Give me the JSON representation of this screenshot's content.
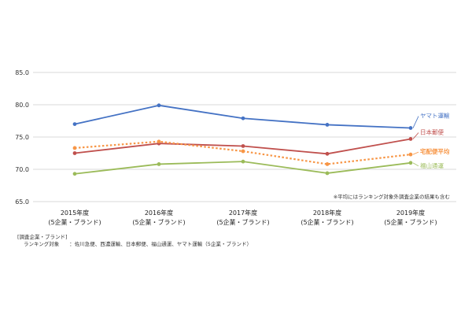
{
  "chart_data": {
    "type": "line",
    "categories": [
      [
        "2015年度",
        "(5企業・ブランド)"
      ],
      [
        "2016年度",
        "(5企業・ブランド)"
      ],
      [
        "2017年度",
        "(5企業・ブランド)"
      ],
      [
        "2018年度",
        "(5企業・ブランド)"
      ],
      [
        "2019年度",
        "(5企業・ブランド)"
      ]
    ],
    "yticks": [
      "85.0",
      "80.0",
      "75.0",
      "70.0",
      "65.0"
    ],
    "ylim": [
      65,
      85
    ],
    "grid": true,
    "series": [
      {
        "name": "ヤマト運輸",
        "values": [
          77.0,
          79.9,
          77.9,
          76.9,
          76.4
        ],
        "color": "#4472c4",
        "dash": false
      },
      {
        "name": "日本郵便",
        "values": [
          72.5,
          74.0,
          73.6,
          72.4,
          74.7
        ],
        "color": "#c0504d",
        "dash": false
      },
      {
        "name": "宅配便平均",
        "values": [
          73.3,
          74.3,
          72.8,
          70.8,
          72.3
        ],
        "color": "#f79646",
        "dash": true
      },
      {
        "name": "福山通運",
        "values": [
          69.3,
          70.8,
          71.2,
          69.4,
          71.0
        ],
        "color": "#9bbb59",
        "dash": false
      }
    ],
    "note": "※平均にはランキング対象外調査企業の結果も含む"
  },
  "footnote": {
    "title": "[調査企業・ブランド]",
    "line": "ランキング対象　　：佐川急便、西濃運輸、日本郵便、福山通運、ヤマト運輸（5企業・ブランド）"
  }
}
